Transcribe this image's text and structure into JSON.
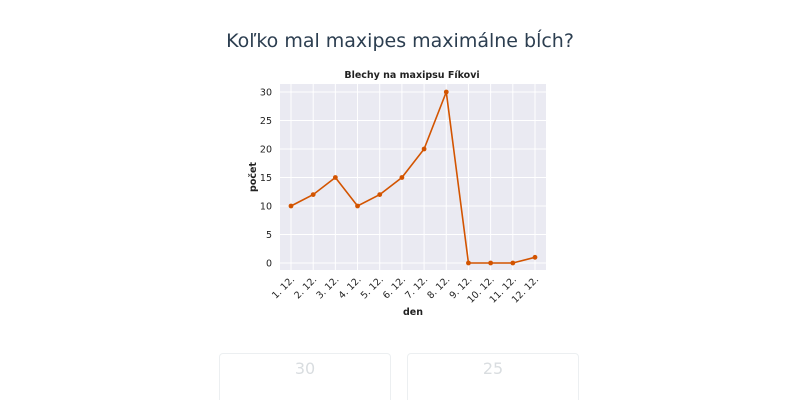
{
  "question": {
    "text": "Koľko mal maxipes maximálne bĺch?"
  },
  "chart_data": {
    "type": "line",
    "title": "Blechy na maxipsu Fíkovi",
    "xlabel": "den",
    "ylabel": "počet",
    "categories": [
      "1. 12.",
      "2. 12.",
      "3. 12.",
      "4. 12.",
      "5. 12.",
      "6. 12.",
      "7. 12.",
      "8. 12.",
      "9. 12.",
      "10. 12.",
      "11. 12.",
      "12. 12."
    ],
    "series": [
      {
        "values": [
          10,
          12,
          15,
          10,
          12,
          15,
          20,
          30,
          0,
          0,
          0,
          1
        ]
      }
    ],
    "ylim": [
      0,
      30
    ],
    "yticks": [
      0,
      5,
      10,
      15,
      20,
      25,
      30
    ],
    "grid": true,
    "line_color": "#d35400",
    "background_color": "#eaeaf2"
  },
  "answers": [
    {
      "label": "30"
    },
    {
      "label": "25"
    }
  ]
}
